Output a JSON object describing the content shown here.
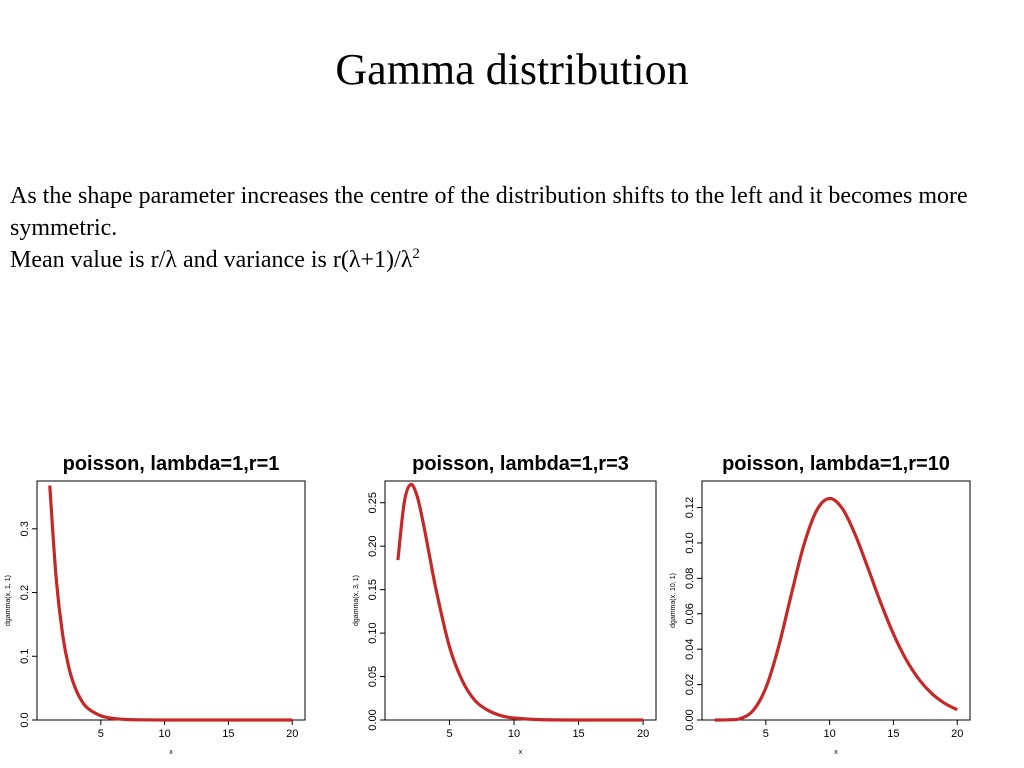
{
  "slide": {
    "title": "Gamma distribution",
    "paragraph1": "As the shape parameter increases the centre of the distribution shifts to the left and it becomes more symmetric.",
    "mean_prefix": "Mean value is r/",
    "lambda_symbol": "λ",
    "mean_mid": " and variance is r(",
    "mean_mid2": "+1)/",
    "superscript": "2"
  },
  "colors": {
    "curve": "#c62828"
  },
  "chart_data": [
    {
      "type": "line",
      "title": "poisson, lambda=1,r=1",
      "xlabel": "x",
      "ylabel": "dgamma(x, 1, 1)",
      "xlim": [
        0,
        21
      ],
      "ylim": [
        0,
        0.375
      ],
      "xticks": [
        5,
        10,
        15,
        20
      ],
      "yticks": [
        0.0,
        0.1,
        0.2,
        0.3
      ],
      "ytick_labels": [
        "0.0",
        "0.1",
        "0.2",
        "0.3"
      ],
      "series": [
        {
          "x": [
            1,
            1.5,
            2,
            2.5,
            3,
            3.5,
            4,
            5,
            6,
            7,
            8,
            10,
            12,
            15,
            20
          ],
          "y": [
            0.368,
            0.223,
            0.135,
            0.082,
            0.05,
            0.03,
            0.018,
            0.0067,
            0.0025,
            0.0009,
            0.0003,
            5e-05,
            0.0,
            0.0,
            0.0
          ]
        }
      ]
    },
    {
      "type": "line",
      "title": "poisson, lambda=1,r=3",
      "xlabel": "x",
      "ylabel": "dgamma(x, 3, 1)",
      "xlim": [
        0,
        21
      ],
      "ylim": [
        0,
        0.275
      ],
      "xticks": [
        5,
        10,
        15,
        20
      ],
      "yticks": [
        0.0,
        0.05,
        0.1,
        0.15,
        0.2,
        0.25
      ],
      "ytick_labels": [
        "0.00",
        "0.05",
        "0.10",
        "0.15",
        "0.20",
        "0.25"
      ],
      "series": [
        {
          "x": [
            1,
            1.5,
            2,
            2.5,
            3,
            3.5,
            4,
            5,
            6,
            7,
            8,
            9,
            10,
            12,
            15,
            20
          ],
          "y": [
            0.184,
            0.251,
            0.271,
            0.257,
            0.224,
            0.185,
            0.147,
            0.084,
            0.045,
            0.022,
            0.011,
            0.005,
            0.0023,
            0.0004,
            0.0,
            0.0
          ]
        }
      ]
    },
    {
      "type": "line",
      "title": "poisson, lambda=1,r=10",
      "xlabel": "x",
      "ylabel": "dgamma(x, 10, 1)",
      "xlim": [
        0,
        21
      ],
      "ylim": [
        0,
        0.135
      ],
      "xticks": [
        5,
        10,
        15,
        20
      ],
      "yticks": [
        0.0,
        0.02,
        0.04,
        0.06,
        0.08,
        0.1,
        0.12
      ],
      "ytick_labels": [
        "0.00",
        "0.02",
        "0.04",
        "0.06",
        "0.08",
        "0.10",
        "0.12"
      ],
      "series": [
        {
          "x": [
            1,
            2,
            3,
            4,
            5,
            6,
            7,
            8,
            9,
            10,
            11,
            12,
            13,
            14,
            15,
            16,
            17,
            18,
            19,
            20
          ],
          "y": [
            0.0,
            0.0001,
            0.0008,
            0.0053,
            0.0181,
            0.0413,
            0.071,
            0.0993,
            0.1186,
            0.1251,
            0.1194,
            0.1048,
            0.0859,
            0.0663,
            0.0486,
            0.0341,
            0.023,
            0.015,
            0.0095,
            0.0058
          ]
        }
      ]
    }
  ]
}
